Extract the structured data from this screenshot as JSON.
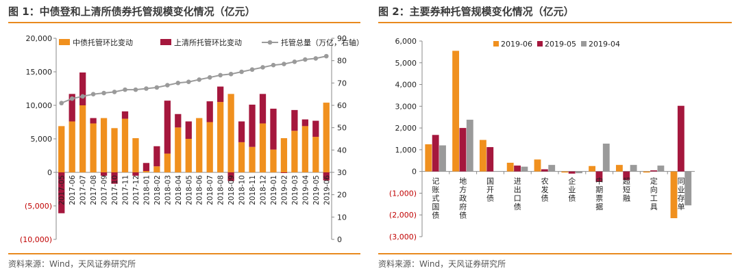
{
  "colors": {
    "orange": "#f0901e",
    "crimson": "#a5173d",
    "gray": "#9a9a9a",
    "rule": "#e8891d",
    "red_text": "#c00000",
    "axis": "#888888"
  },
  "figure1": {
    "title": "图 1：中债登和上清所债券托管规模变化情况（亿元）",
    "source": "资料来源：Wind，天风证券研究所"
  },
  "figure2": {
    "title": "图 2：主要券种托管规模变化情况（亿元）",
    "source": "资料来源：Wind，天风证券研究所"
  },
  "chart_data": [
    {
      "type": "bar",
      "title": "图 1：中债登和上清所债券托管规模变化情况（亿元）",
      "categories": [
        "2017-05",
        "2017-06",
        "2017-07",
        "2017-08",
        "2017-09",
        "2017-10",
        "2017-11",
        "2017-12",
        "2018-01",
        "2018-02",
        "2018-03",
        "2018-04",
        "2018-05",
        "2018-06",
        "2018-07",
        "2018-08",
        "2018-09",
        "2018-10",
        "2018-11",
        "2018-12",
        "2019-01",
        "2019-02",
        "2019-03",
        "2019-04",
        "2019-05",
        "2019-06"
      ],
      "series": [
        {
          "name": "中债托管环比变动",
          "type": "bar",
          "axis": "left",
          "color": "#f0901e",
          "values": [
            6900,
            7600,
            10000,
            7300,
            8100,
            6600,
            8000,
            5100,
            200,
            900,
            2800,
            6700,
            5000,
            8100,
            7500,
            10500,
            11700,
            4500,
            3800,
            7300,
            3400,
            5100,
            6200,
            6900,
            5300,
            10400
          ]
        },
        {
          "name": "上清所托管环比变动",
          "type": "bar",
          "axis": "left",
          "color": "#a5173d",
          "values": [
            -6100,
            4100,
            4900,
            800,
            -500,
            -1700,
            1100,
            -500,
            1200,
            3000,
            7900,
            2000,
            2600,
            0,
            3100,
            2300,
            -1300,
            3100,
            6300,
            4400,
            6100,
            -100,
            3100,
            1000,
            2400,
            -1200
          ]
        },
        {
          "name": "托管总量（万亿，右轴）",
          "type": "line",
          "axis": "right",
          "color": "#9a9a9a",
          "values": [
            61,
            63,
            64,
            65,
            65.5,
            66,
            67,
            67,
            67.5,
            68,
            69,
            70,
            70.5,
            71.5,
            72.5,
            73.5,
            74,
            75,
            76,
            77,
            78,
            78.5,
            79.5,
            80.5,
            81,
            82
          ]
        }
      ],
      "ylim": [
        -10000,
        20000
      ],
      "yticks": [
        "(10,000)",
        "(5,000)",
        "0",
        "5,000",
        "10,000",
        "15,000",
        "20,000"
      ],
      "y2lim": [
        0,
        90
      ],
      "y2ticks": [
        "0",
        "10",
        "20",
        "30",
        "40",
        "50",
        "60",
        "70",
        "80",
        "90"
      ],
      "legend": "top",
      "grid": false
    },
    {
      "type": "bar",
      "title": "图 2：主要券种托管规模变化情况（亿元）",
      "categories": [
        "记账式国债",
        "地方政府债",
        "国开债",
        "进出口债",
        "农发债",
        "企业债",
        "中期票据",
        "超短融",
        "定向工具",
        "同业存单"
      ],
      "series": [
        {
          "name": "2019-06",
          "color": "#f0901e",
          "values": [
            1250,
            5550,
            1450,
            400,
            550,
            -50,
            250,
            300,
            -50,
            -2150
          ]
        },
        {
          "name": "2019-05",
          "color": "#a5173d",
          "values": [
            1680,
            2000,
            1120,
            270,
            100,
            -100,
            -480,
            -400,
            50,
            3020
          ]
        },
        {
          "name": "2019-04",
          "color": "#9a9a9a",
          "values": [
            1200,
            2380,
            0,
            220,
            300,
            -80,
            1280,
            300,
            270,
            -1560
          ]
        }
      ],
      "ylim": [
        -3000,
        6000
      ],
      "yticks": [
        "(3,000)",
        "(2,000)",
        "(1,000)",
        "0",
        "1,000",
        "2,000",
        "3,000",
        "4,000",
        "5,000",
        "6,000"
      ],
      "legend": "top",
      "grid": false
    }
  ]
}
